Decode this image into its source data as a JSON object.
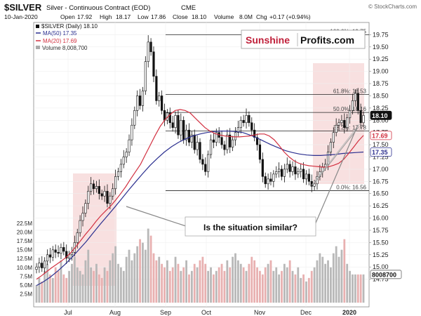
{
  "header": {
    "symbol": "$SILVER",
    "name": "Silver - Continuous Contract (EOD)",
    "exchange": "CME",
    "watermark": "© StockCharts.com",
    "date": "10-Jan-2020",
    "open_label": "Open",
    "open": "17.92",
    "high_label": "High",
    "high": "18.17",
    "low_label": "Low",
    "low": "17.86",
    "close_label": "Close",
    "close": "18.10",
    "volume_label": "Volume",
    "volume": "8.0M",
    "chg_label": "Chg",
    "chg": "+0.17 (+0.94%)"
  },
  "legend": {
    "price": "$SILVER (Daily) 18.10",
    "ma50": "MA(50) 17.35",
    "ma20": "MA(20) 17.69",
    "volume": "Volume 8,008,700"
  },
  "logo": {
    "part1": "Sunshine",
    "part2": "Profits.com"
  },
  "callout": "Is the situation similar?",
  "colors": {
    "ma50": "#2b2f8f",
    "ma20": "#d23040",
    "candle": "#111111",
    "highlight": "#f6d5d5",
    "volume_up": "#b8b8b8",
    "volume_down": "#e8b0b0",
    "logo_red": "#c0203a"
  },
  "chart_data": {
    "type": "candlestick",
    "x_labels": [
      "Jul",
      "Aug",
      "Sep",
      "Oct",
      "Nov",
      "Dec",
      "2020"
    ],
    "price_ylim": [
      14.5,
      20.0
    ],
    "price_ticks": [
      "14.75",
      "15.00",
      "15.25",
      "15.50",
      "15.75",
      "16.00",
      "16.25",
      "16.50",
      "16.75",
      "17.00",
      "17.25",
      "17.50",
      "17.75",
      "18.00",
      "18.25",
      "18.50",
      "18.75",
      "19.00",
      "19.25",
      "19.50",
      "19.75"
    ],
    "volume_ticks": [
      "2.5M",
      "5.0M",
      "7.5M",
      "10.0M",
      "12.5M",
      "15.0M",
      "17.5M",
      "20.0M",
      "22.5M"
    ],
    "price_badges": {
      "last": "18.10",
      "ma20": "17.69",
      "ma50": "17.35",
      "volume": "8008700"
    },
    "fib_levels": [
      {
        "label": "100.0%: 19.75",
        "value": 19.75
      },
      {
        "label": "61.8%: 18.53",
        "value": 18.53
      },
      {
        "label": "50.0%: 18.16",
        "value": 18.16
      },
      {
        "label": "38.2%: 17.78",
        "value": 17.78
      },
      {
        "label": "0.0%: 16.56",
        "value": 16.56
      }
    ],
    "close_series": [
      15.0,
      15.08,
      14.98,
      15.12,
      15.25,
      15.2,
      15.35,
      15.3,
      15.28,
      15.4,
      15.32,
      15.18,
      15.25,
      15.3,
      15.5,
      15.7,
      15.95,
      16.1,
      16.3,
      16.55,
      16.7,
      16.6,
      16.65,
      16.5,
      16.45,
      16.55,
      16.3,
      16.45,
      16.6,
      16.85,
      16.95,
      17.1,
      17.25,
      17.35,
      17.6,
      17.9,
      18.2,
      18.5,
      18.3,
      18.6,
      19.2,
      19.6,
      19.4,
      18.9,
      18.4,
      18.5,
      18.2,
      18.0,
      18.15,
      17.95,
      17.85,
      18.1,
      17.7,
      18.0,
      17.6,
      17.8,
      17.55,
      17.7,
      17.4,
      17.55,
      17.2,
      17.1,
      16.95,
      17.3,
      17.6,
      17.55,
      17.75,
      17.65,
      17.5,
      17.4,
      17.7,
      17.45,
      17.6,
      17.75,
      17.85,
      18.0,
      17.95,
      18.1,
      17.95,
      17.8,
      17.65,
      17.5,
      17.2,
      16.85,
      16.7,
      16.8,
      16.75,
      16.9,
      16.95,
      17.0,
      16.85,
      17.0,
      17.1,
      16.95,
      17.05,
      16.9,
      16.95,
      17.0,
      16.8,
      16.9,
      16.75,
      16.65,
      16.7,
      16.85,
      16.95,
      17.05,
      17.1,
      17.35,
      17.55,
      17.75,
      17.9,
      17.95,
      18.0,
      17.85,
      18.05,
      18.2,
      18.4,
      18.55,
      18.2,
      17.95,
      18.1
    ],
    "ma20_series": [
      14.75,
      14.82,
      14.9,
      14.98,
      15.05,
      15.12,
      15.2,
      15.3,
      15.42,
      15.55,
      15.68,
      15.8,
      15.93,
      16.05,
      16.15,
      16.25,
      16.37,
      16.5,
      16.64,
      16.8,
      16.95,
      17.1,
      17.3,
      17.5,
      17.7,
      17.88,
      18.02,
      18.12,
      18.2,
      18.22,
      18.2,
      18.15,
      18.05,
      17.95,
      17.85,
      17.78,
      17.73,
      17.7,
      17.68,
      17.67,
      17.66,
      17.66,
      17.67,
      17.68,
      17.7,
      17.72,
      17.72,
      17.68,
      17.6,
      17.48,
      17.35,
      17.25,
      17.17,
      17.12,
      17.09,
      17.07,
      17.06,
      17.05,
      17.04,
      17.05,
      17.08,
      17.12,
      17.2,
      17.32,
      17.45,
      17.58,
      17.69
    ],
    "ma50_series": [
      14.62,
      14.7,
      14.8,
      14.92,
      15.05,
      15.2,
      15.36,
      15.52,
      15.7,
      15.88,
      16.05,
      16.22,
      16.4,
      16.58,
      16.75,
      16.92,
      17.08,
      17.22,
      17.35,
      17.46,
      17.55,
      17.62,
      17.68,
      17.72,
      17.75,
      17.77,
      17.78,
      17.78,
      17.77,
      17.75,
      17.7,
      17.64,
      17.57,
      17.5,
      17.44,
      17.38,
      17.34,
      17.31,
      17.29,
      17.28,
      17.28,
      17.29,
      17.3,
      17.32,
      17.33,
      17.34,
      17.35
    ],
    "volume_series": [
      5,
      7,
      6,
      9,
      11,
      8,
      7,
      10,
      9,
      12,
      8,
      7,
      9,
      11,
      13,
      10,
      9,
      8,
      12,
      15,
      10,
      9,
      11,
      8,
      7,
      10,
      9,
      12,
      14,
      16,
      11,
      10,
      9,
      13,
      15,
      12,
      14,
      16,
      18,
      17,
      15,
      21,
      19,
      14,
      12,
      13,
      11,
      10,
      12,
      9,
      10,
      13,
      11,
      9,
      10,
      12,
      8,
      9,
      11,
      10,
      12,
      13,
      11,
      9,
      10,
      8,
      9,
      10,
      11,
      9,
      12,
      10,
      13,
      14,
      12,
      11,
      10,
      9,
      11,
      13,
      12,
      10,
      9,
      8,
      10,
      11,
      12,
      9,
      10,
      8,
      9,
      11,
      10,
      12,
      9,
      8,
      10,
      7,
      8,
      6,
      7,
      9,
      10,
      12,
      14,
      13,
      11,
      12,
      10,
      14,
      16,
      13,
      15,
      18,
      11,
      9,
      8
    ]
  }
}
